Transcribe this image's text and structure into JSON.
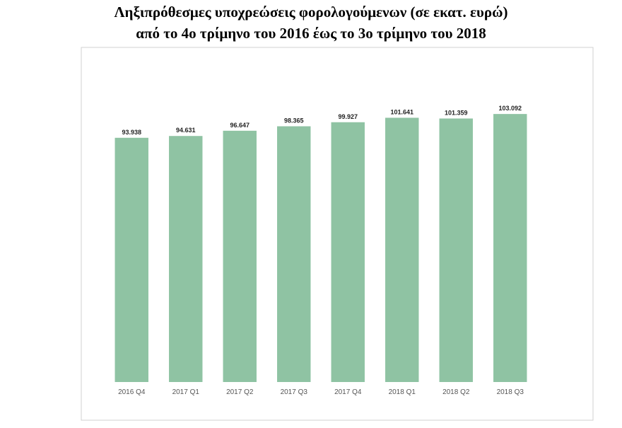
{
  "chart_data": {
    "type": "bar",
    "title": [
      "Ληξιπρόθεσμες υποχρεώσεις φορολογούμενων (σε εκατ. ευρώ)",
      "από το 4ο τρίμηνο του 2016 έως το 3ο τρίμηνο του 2018"
    ],
    "categories": [
      "2016 Q4",
      "2017 Q1",
      "2017 Q2",
      "2017 Q3",
      "2017 Q4",
      "2018 Q1",
      "2018 Q2",
      "2018 Q3"
    ],
    "values": [
      93.938,
      94.631,
      96.647,
      98.365,
      99.927,
      101.641,
      101.359,
      103.092
    ],
    "color": "#8fc3a3",
    "ylim": [
      0,
      120
    ]
  }
}
